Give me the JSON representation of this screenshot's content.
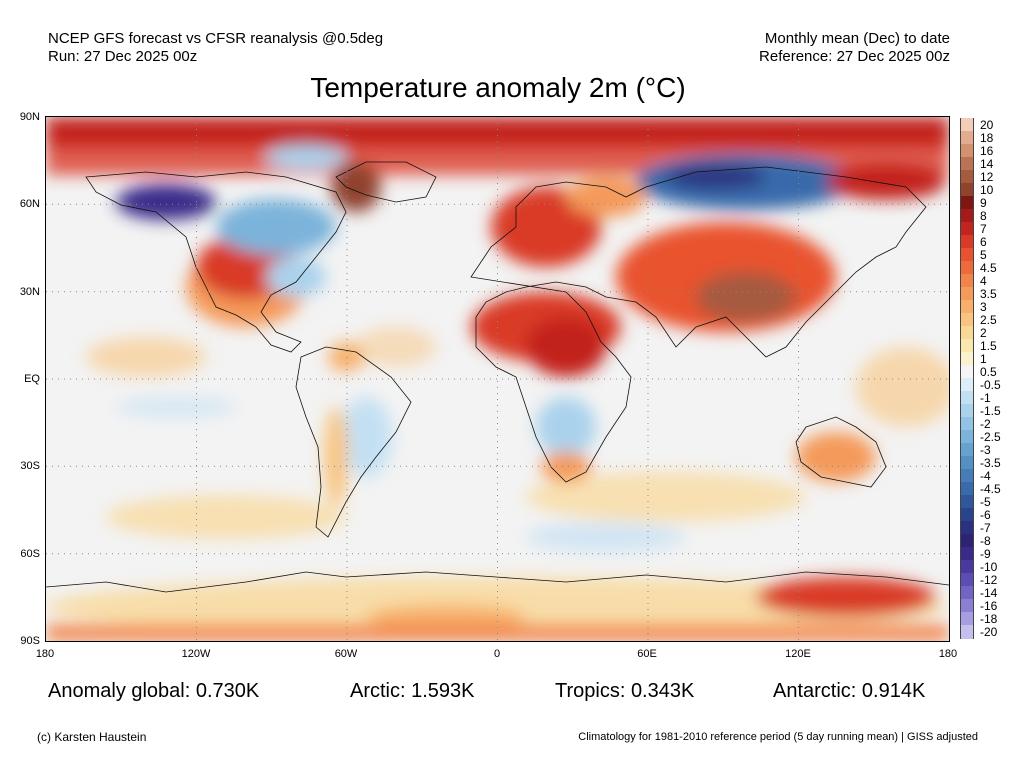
{
  "header": {
    "left_line1": "NCEP GFS forecast vs CFSR reanalysis @0.5deg",
    "left_line2": "Run: 27 Dec 2025 00z",
    "right_line1": "Monthly mean (Dec) to date",
    "right_line2": "Reference: 27 Dec 2025 00z"
  },
  "title": "Temperature anomaly 2m (°C)",
  "axes": {
    "lat_labels": [
      "90N",
      "60N",
      "30N",
      "EQ",
      "30S",
      "60S",
      "90S"
    ],
    "lon_labels": [
      "180",
      "120W",
      "60W",
      "0",
      "60E",
      "120E",
      "180"
    ]
  },
  "colorbar": {
    "labels": [
      "20",
      "18",
      "16",
      "14",
      "12",
      "10",
      "9",
      "8",
      "7",
      "6",
      "5",
      "4.5",
      "4",
      "3.5",
      "3",
      "2.5",
      "2",
      "1.5",
      "1",
      "0.5",
      "-0.5",
      "-1",
      "-1.5",
      "-2",
      "-2.5",
      "-3",
      "-3.5",
      "-4",
      "-4.5",
      "-5",
      "-6",
      "-7",
      "-8",
      "-9",
      "-10",
      "-12",
      "-14",
      "-16",
      "-18",
      "-20"
    ],
    "colors": [
      "#f4cdb9",
      "#e4ab8e",
      "#d2916f",
      "#bc7355",
      "#a65a40",
      "#8f432d",
      "#7e1614",
      "#a31b1b",
      "#c2241f",
      "#d93a28",
      "#e9522f",
      "#ef6a3a",
      "#f2834a",
      "#f49a5a",
      "#f6b06c",
      "#f8c47f",
      "#f9d796",
      "#fae7b0",
      "#faf2cc",
      "#f5f5f5",
      "#dcecf8",
      "#c3e0f3",
      "#aad2ec",
      "#93c3e4",
      "#7cb3da",
      "#66a2d0",
      "#5590c4",
      "#467db8",
      "#396aab",
      "#2f579c",
      "#2a438d",
      "#2a317e",
      "#2c2372",
      "#3a2a8a",
      "#4a3a9f",
      "#5b4db3",
      "#7264c4",
      "#8a80d3",
      "#a59ee0",
      "#c4bfec"
    ]
  },
  "stats": {
    "global": "Anomaly global: 0.730K",
    "arctic": "Arctic: 1.593K",
    "tropics": "Tropics: 0.343K",
    "antarctic": "Antarctic: 0.914K"
  },
  "footer": {
    "credit": "(c) Karsten Haustein",
    "climatology": "Climatology for 1981-2010 reference period (5 day running mean) | GISS adjusted"
  }
}
